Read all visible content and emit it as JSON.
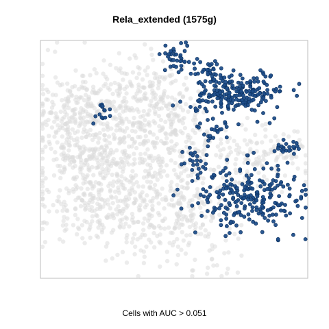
{
  "chart_data": {
    "type": "scatter",
    "title": "Rela_extended (1575g)",
    "xlabel": "Cells with AUC > 0.051",
    "ylabel": "",
    "axes_visible": false,
    "grid": false,
    "colors": {
      "background_cells": "#dcdcdc",
      "highlight_cells": "#1f4e8a",
      "highlight_edge": "#0b2f5c",
      "frame": "#bdbdbd"
    },
    "series": [
      {
        "name": "",
        "kind": "background",
        "clusters": [
          {
            "cx": 130,
            "cy": 215,
            "sx": 45,
            "sy": 55,
            "n": 380
          },
          {
            "cx": 165,
            "cy": 290,
            "sx": 55,
            "sy": 40,
            "n": 300
          },
          {
            "cx": 215,
            "cy": 150,
            "sx": 45,
            "sy": 35,
            "n": 240
          },
          {
            "cx": 250,
            "cy": 215,
            "sx": 35,
            "sy": 45,
            "n": 180
          },
          {
            "cx": 270,
            "cy": 320,
            "sx": 40,
            "sy": 40,
            "n": 200
          },
          {
            "cx": 370,
            "cy": 225,
            "sx": 40,
            "sy": 25,
            "n": 150
          },
          {
            "cx": 110,
            "cy": 160,
            "sx": 30,
            "sy": 20,
            "n": 120
          }
        ]
      },
      {
        "name": "",
        "kind": "highlight",
        "clusters": [
          {
            "cx": 345,
            "cy": 135,
            "sx": 35,
            "sy": 18,
            "n": 230
          },
          {
            "cx": 365,
            "cy": 285,
            "sx": 40,
            "sy": 22,
            "n": 230
          },
          {
            "cx": 263,
            "cy": 88,
            "sx": 12,
            "sy": 12,
            "n": 30
          },
          {
            "cx": 150,
            "cy": 168,
            "sx": 8,
            "sy": 8,
            "n": 14
          },
          {
            "cx": 420,
            "cy": 215,
            "sx": 12,
            "sy": 6,
            "n": 22
          },
          {
            "cx": 285,
            "cy": 235,
            "sx": 10,
            "sy": 10,
            "n": 22
          },
          {
            "cx": 310,
            "cy": 195,
            "sx": 12,
            "sy": 10,
            "n": 20
          },
          {
            "cx": 300,
            "cy": 105,
            "sx": 10,
            "sy": 6,
            "n": 14
          },
          {
            "cx": 330,
            "cy": 325,
            "sx": 8,
            "sy": 10,
            "n": 10
          },
          {
            "cx": 245,
            "cy": 78,
            "sx": 8,
            "sy": 4,
            "n": 8
          }
        ]
      }
    ]
  }
}
